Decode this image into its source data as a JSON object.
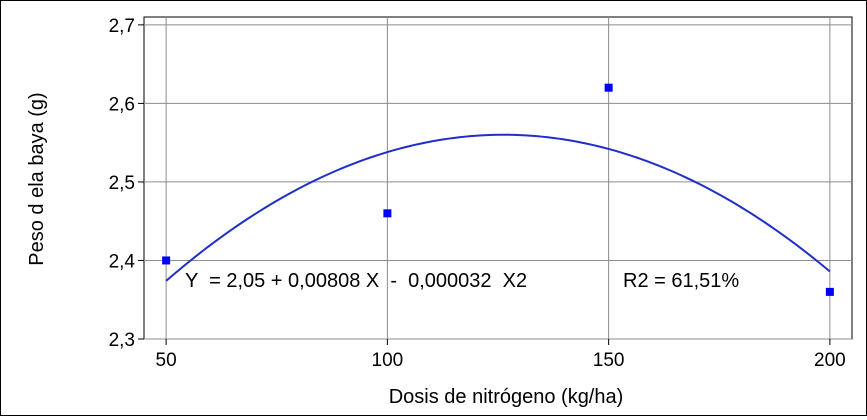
{
  "chart_data": {
    "type": "scatter",
    "xlabel": "Dosis de nitrógeno (kg/ha)",
    "ylabel": "Peso d ela baya (g)",
    "xlim": [
      45,
      205
    ],
    "ylim": [
      2.3,
      2.71
    ],
    "x_ticks": [
      50,
      100,
      150,
      200
    ],
    "x_tick_labels": [
      "50",
      "100",
      "150",
      "200"
    ],
    "y_ticks": [
      2.3,
      2.4,
      2.5,
      2.6,
      2.7
    ],
    "y_tick_labels": [
      "2,3",
      "2,4",
      "2,5",
      "2,6",
      "2,7"
    ],
    "grid": true,
    "legend": "none",
    "points": [
      {
        "x": 50,
        "y": 2.4
      },
      {
        "x": 100,
        "y": 2.46
      },
      {
        "x": 150,
        "y": 2.62
      },
      {
        "x": 200,
        "y": 2.36
      }
    ],
    "fit": {
      "equation": "Y  = 2,05 + 0,00808 X  -  0,000032  X2",
      "r2": "R2 = 61,51%",
      "model": "quadratic",
      "intercept": 2.05,
      "b1": 0.00808,
      "b2": -3.2e-05,
      "x_range": [
        50,
        200
      ]
    },
    "colors": {
      "marker": "#0000ff",
      "curve": "#1f2fc9",
      "grid": "#8c8c8c",
      "axes": "#000000"
    }
  }
}
